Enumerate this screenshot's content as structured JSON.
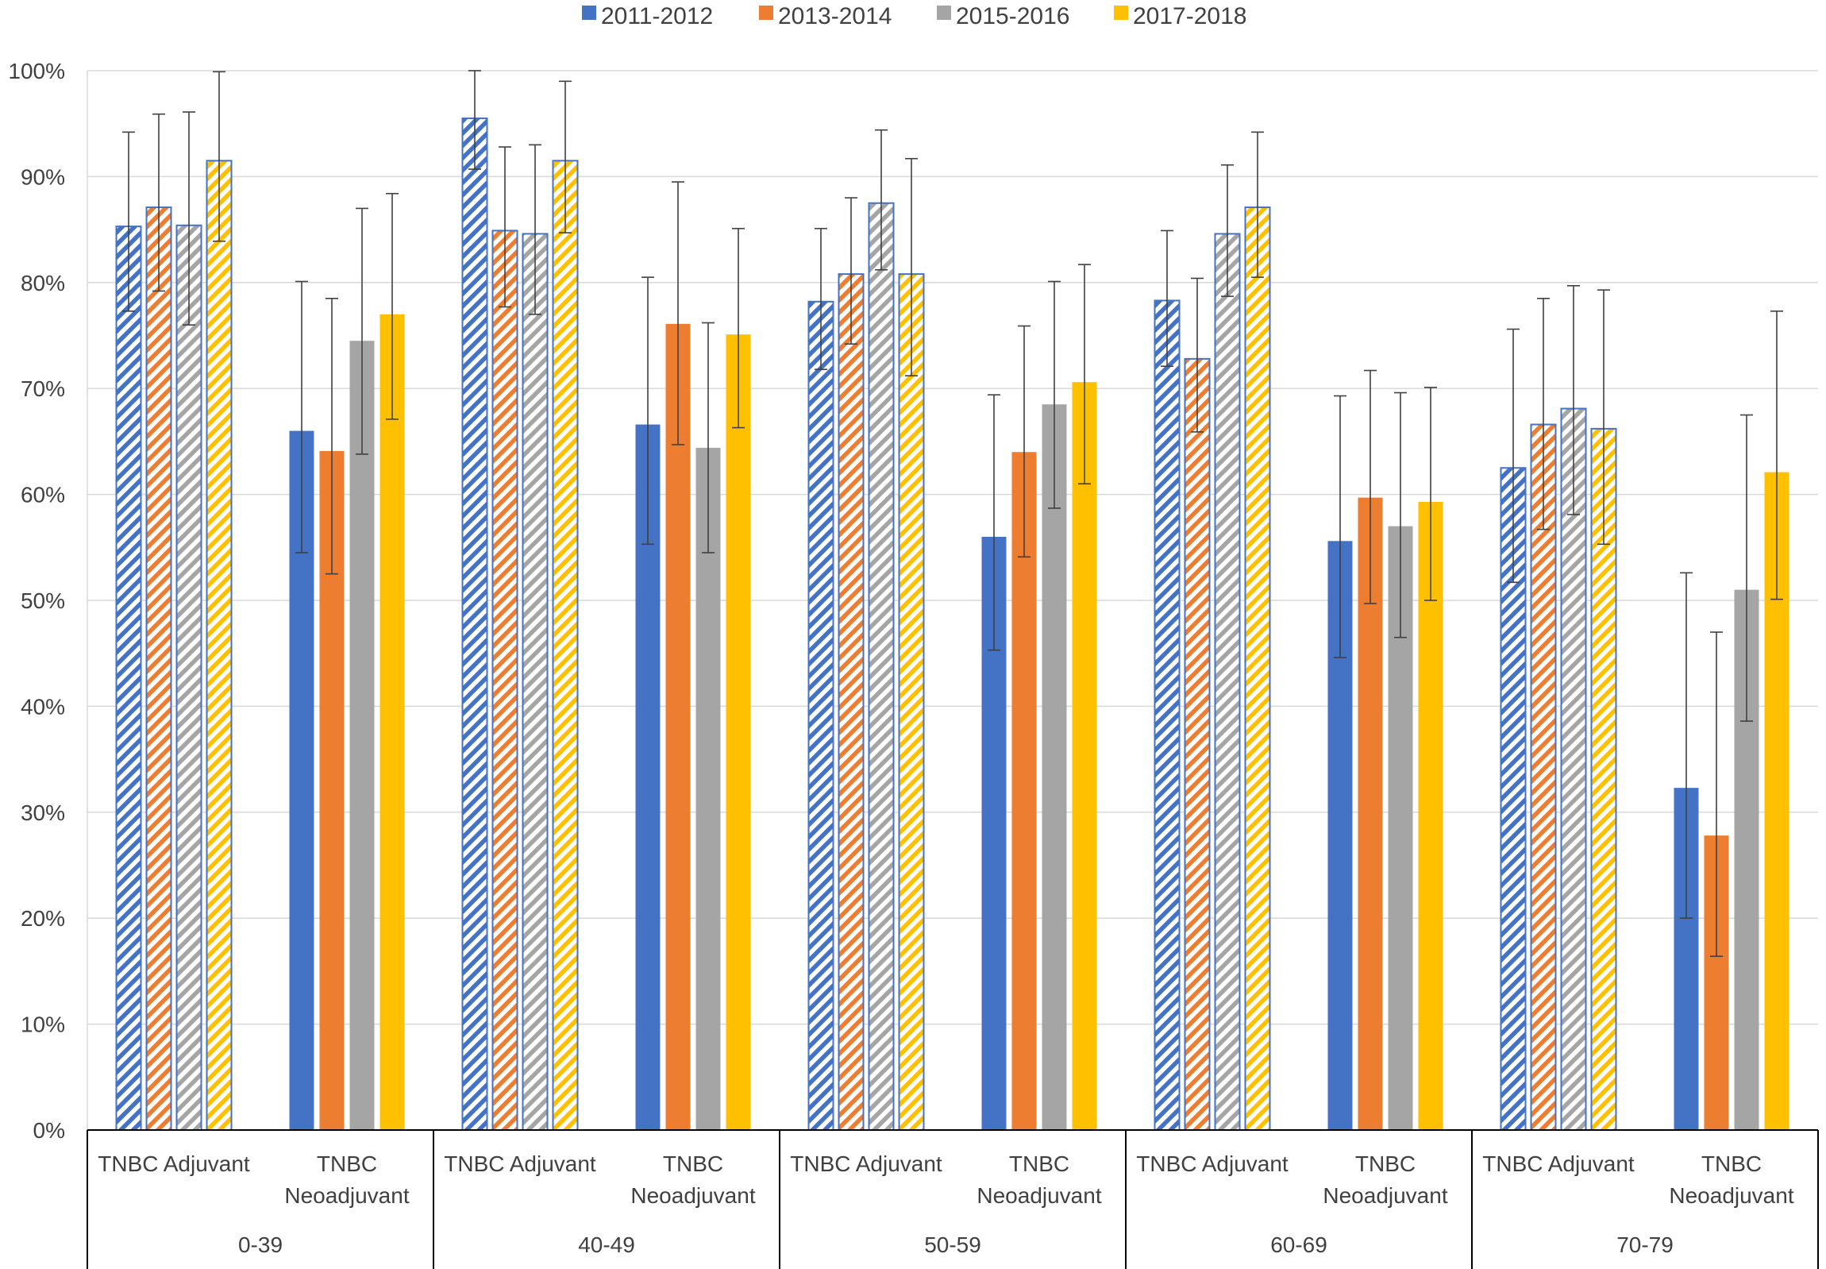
{
  "chart_data": {
    "type": "bar",
    "title": "",
    "xlabel": "",
    "ylabel": "",
    "ylim": [
      0,
      100
    ],
    "y_ticks": [
      "0%",
      "10%",
      "20%",
      "30%",
      "40%",
      "50%",
      "60%",
      "70%",
      "80%",
      "90%",
      "100%"
    ],
    "grid": true,
    "legend_position": "top",
    "colors": {
      "2011-2012": "#4472C4",
      "2013-2014": "#ED7D31",
      "2015-2016": "#A5A5A5",
      "2017-2018": "#FFC000",
      "outline": "#4472C4",
      "grid": "#D9D9D9",
      "errorbar": "#404040",
      "axis": "#000000"
    },
    "series": [
      {
        "name": "2011-2012"
      },
      {
        "name": "2013-2014"
      },
      {
        "name": "2015-2016"
      },
      {
        "name": "2017-2018"
      }
    ],
    "age_groups": [
      {
        "label": "0-39",
        "subgroups": [
          {
            "label": [
              "TNBC Adjuvant"
            ],
            "pattern": "striped",
            "values": [
              85.3,
              87.1,
              85.4,
              91.5
            ],
            "error_low": [
              77.3,
              79.2,
              76.0,
              83.9
            ],
            "error_high": [
              94.2,
              95.9,
              96.1,
              99.9
            ]
          },
          {
            "label": [
              "TNBC",
              "Neoadjuvant"
            ],
            "pattern": "solid",
            "values": [
              66.0,
              64.1,
              74.5,
              77.0
            ],
            "error_low": [
              54.5,
              52.5,
              63.8,
              67.1
            ],
            "error_high": [
              80.1,
              78.5,
              87.0,
              88.4
            ]
          }
        ]
      },
      {
        "label": "40-49",
        "subgroups": [
          {
            "label": [
              "TNBC Adjuvant"
            ],
            "pattern": "striped",
            "values": [
              95.5,
              84.9,
              84.6,
              91.5
            ],
            "error_low": [
              90.7,
              77.7,
              77.0,
              84.7
            ],
            "error_high": [
              100.0,
              92.8,
              93.0,
              99.0
            ]
          },
          {
            "label": [
              "TNBC",
              "Neoadjuvant"
            ],
            "pattern": "solid",
            "values": [
              66.6,
              76.1,
              64.4,
              75.1
            ],
            "error_low": [
              55.3,
              64.7,
              54.5,
              66.3
            ],
            "error_high": [
              80.5,
              89.5,
              76.2,
              85.1
            ]
          }
        ]
      },
      {
        "label": "50-59",
        "subgroups": [
          {
            "label": [
              "TNBC Adjuvant"
            ],
            "pattern": "striped",
            "values": [
              78.2,
              80.8,
              87.5,
              80.8
            ],
            "error_low": [
              71.8,
              74.2,
              81.2,
              71.2
            ],
            "error_high": [
              85.1,
              88.0,
              94.4,
              91.7
            ]
          },
          {
            "label": [
              "TNBC",
              "Neoadjuvant"
            ],
            "pattern": "solid",
            "values": [
              56.0,
              64.0,
              68.5,
              70.6
            ],
            "error_low": [
              45.3,
              54.1,
              58.7,
              61.0
            ],
            "error_high": [
              69.4,
              75.9,
              80.1,
              81.7
            ]
          }
        ]
      },
      {
        "label": "60-69",
        "subgroups": [
          {
            "label": [
              "TNBC Adjuvant"
            ],
            "pattern": "striped",
            "values": [
              78.3,
              72.8,
              84.6,
              87.1
            ],
            "error_low": [
              72.1,
              65.9,
              78.7,
              80.5
            ],
            "error_high": [
              84.9,
              80.4,
              91.1,
              94.2
            ]
          },
          {
            "label": [
              "TNBC",
              "Neoadjuvant"
            ],
            "pattern": "solid",
            "values": [
              55.6,
              59.7,
              57.0,
              59.3
            ],
            "error_low": [
              44.6,
              49.7,
              46.5,
              50.0
            ],
            "error_high": [
              69.3,
              71.7,
              69.6,
              70.1
            ]
          }
        ]
      },
      {
        "label": "70-79",
        "subgroups": [
          {
            "label": [
              "TNBC Adjuvant"
            ],
            "pattern": "striped",
            "values": [
              62.5,
              66.6,
              68.1,
              66.2
            ],
            "error_low": [
              51.7,
              56.7,
              58.1,
              55.3
            ],
            "error_high": [
              75.6,
              78.5,
              79.7,
              79.3
            ]
          },
          {
            "label": [
              "TNBC",
              "Neoadjuvant"
            ],
            "pattern": "solid",
            "values": [
              32.3,
              27.8,
              51.0,
              62.1
            ],
            "error_low": [
              20.0,
              16.4,
              38.6,
              50.1
            ],
            "error_high": [
              52.6,
              47.0,
              67.5,
              77.3
            ]
          }
        ]
      }
    ]
  }
}
